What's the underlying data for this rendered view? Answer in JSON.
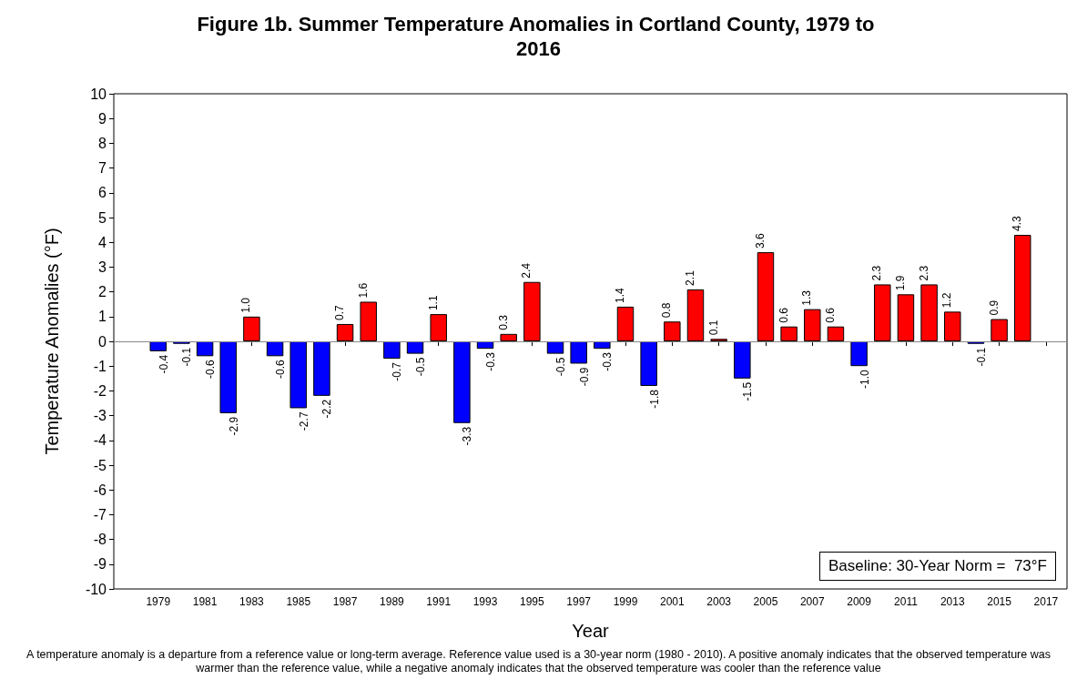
{
  "chart_data": {
    "type": "bar",
    "title": "Figure 1b. Summer Temperature Anomalies in Cortland County, 1979 to 2016",
    "xlabel": "Year",
    "ylabel": "Temperature Anomalies (°F)",
    "x": [
      1979,
      1980,
      1981,
      1982,
      1983,
      1984,
      1985,
      1986,
      1987,
      1988,
      1989,
      1990,
      1991,
      1992,
      1993,
      1994,
      1995,
      1996,
      1997,
      1998,
      1999,
      2000,
      2001,
      2002,
      2003,
      2004,
      2005,
      2006,
      2007,
      2008,
      2009,
      2010,
      2011,
      2012,
      2013,
      2014,
      2015,
      2016
    ],
    "values": [
      -0.4,
      -0.1,
      -0.6,
      -2.9,
      1.0,
      -0.6,
      -2.7,
      -2.2,
      0.7,
      1.6,
      -0.7,
      -0.5,
      1.1,
      -3.3,
      -0.3,
      0.3,
      2.4,
      -0.5,
      -0.9,
      -0.3,
      1.4,
      -1.8,
      0.8,
      2.1,
      0.1,
      -1.5,
      3.6,
      0.6,
      1.3,
      0.6,
      -1.0,
      2.3,
      1.9,
      2.3,
      1.2,
      -0.1,
      0.9,
      4.3
    ],
    "value_labels": [
      "-0.4",
      "-0.1",
      "-0.6",
      "-2.9",
      "1.0",
      "-0.6",
      "-2.7",
      "-2.2",
      "0.7",
      "1.6",
      "-0.7",
      "-0.5",
      "1.1",
      "-3.3",
      "-0.3",
      "0.3",
      "2.4",
      "-0.5",
      "-0.9",
      "-0.3",
      "1.4",
      "-1.8",
      "0.8",
      "2.1",
      "0.1",
      "-1.5",
      "3.6",
      "0.6",
      "1.3",
      "0.6",
      "-1.0",
      "2.3",
      "1.9",
      "2.3",
      "1.2",
      "-0.1",
      "0.9",
      "4.3"
    ],
    "colors": [
      "#0000ff",
      "#0000ff",
      "#0000ff",
      "#0000ff",
      "#ff0000",
      "#0000ff",
      "#0000ff",
      "#0000ff",
      "#ff0000",
      "#ff0000",
      "#0000ff",
      "#0000ff",
      "#ff0000",
      "#0000ff",
      "#0000ff",
      "#ff0000",
      "#ff0000",
      "#0000ff",
      "#0000ff",
      "#0000ff",
      "#ff0000",
      "#0000ff",
      "#ff0000",
      "#ff0000",
      "#ff0000",
      "#0000ff",
      "#ff0000",
      "#ff0000",
      "#ff0000",
      "#ff0000",
      "#0000ff",
      "#ff0000",
      "#ff0000",
      "#ff0000",
      "#ff0000",
      "#0000ff",
      "#ff0000",
      "#ff0000"
    ],
    "xlim": [
      1977.1,
      2017.9
    ],
    "xticks": [
      1979,
      1981,
      1983,
      1985,
      1987,
      1989,
      1991,
      1993,
      1995,
      1997,
      1999,
      2001,
      2003,
      2005,
      2007,
      2009,
      2011,
      2013,
      2015,
      2017
    ],
    "ylim": [
      -10,
      10
    ],
    "yticks": [
      -10,
      -9,
      -8,
      -7,
      -6,
      -5,
      -4,
      -3,
      -2,
      -1,
      0,
      1,
      2,
      3,
      4,
      5,
      6,
      7,
      8,
      9,
      10
    ],
    "ref_lines": [
      {
        "axis": "y",
        "value": 0,
        "color": "#888888"
      }
    ],
    "annotations": [
      "Baseline: 30-Year Norm =  73°F",
      "A temperature anomaly is a departure from a reference value or long-term average. Reference value used is a 30-year norm (1980 - 2010). A positive anomaly indicates that the observed temperature was warmer than the reference value, while a negative anomaly indicates that the observed temperature was cooler than the reference value"
    ],
    "grid": false
  }
}
